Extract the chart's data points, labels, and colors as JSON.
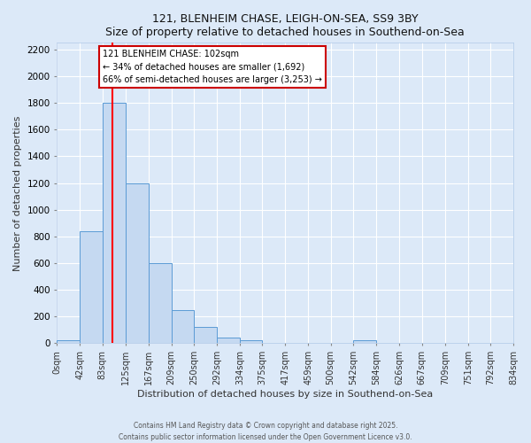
{
  "title_line1": "121, BLENHEIM CHASE, LEIGH-ON-SEA, SS9 3BY",
  "title_line2": "Size of property relative to detached houses in Southend-on-Sea",
  "xlabel": "Distribution of detached houses by size in Southend-on-Sea",
  "ylabel": "Number of detached properties",
  "bin_edges": [
    0,
    42,
    83,
    125,
    167,
    209,
    250,
    292,
    334,
    375,
    417,
    459,
    500,
    542,
    584,
    626,
    667,
    709,
    751,
    792,
    834
  ],
  "bin_labels": [
    "0sqm",
    "42sqm",
    "83sqm",
    "125sqm",
    "167sqm",
    "209sqm",
    "250sqm",
    "292sqm",
    "334sqm",
    "375sqm",
    "417sqm",
    "459sqm",
    "500sqm",
    "542sqm",
    "584sqm",
    "626sqm",
    "667sqm",
    "709sqm",
    "751sqm",
    "792sqm",
    "834sqm"
  ],
  "bar_heights": [
    25,
    840,
    1800,
    1200,
    600,
    250,
    120,
    45,
    25,
    0,
    0,
    0,
    0,
    20,
    0,
    0,
    0,
    0,
    0,
    0
  ],
  "bar_color": "#c5d9f1",
  "bar_edge_color": "#5b9bd5",
  "property_size": 102,
  "red_line_x": 102,
  "annotation_title": "121 BLENHEIM CHASE: 102sqm",
  "annotation_line1": "← 34% of detached houses are smaller (1,692)",
  "annotation_line2": "66% of semi-detached houses are larger (3,253) →",
  "annotation_box_color": "#ffffff",
  "annotation_box_edge": "#cc0000",
  "ylim": [
    0,
    2250
  ],
  "yticks": [
    0,
    200,
    400,
    600,
    800,
    1000,
    1200,
    1400,
    1600,
    1800,
    2000,
    2200
  ],
  "background_color": "#dce9f8",
  "grid_color": "#ffffff",
  "footer_line1": "Contains HM Land Registry data © Crown copyright and database right 2025.",
  "footer_line2": "Contains public sector information licensed under the Open Government Licence v3.0.",
  "fig_width": 6.0,
  "fig_height": 5.0
}
